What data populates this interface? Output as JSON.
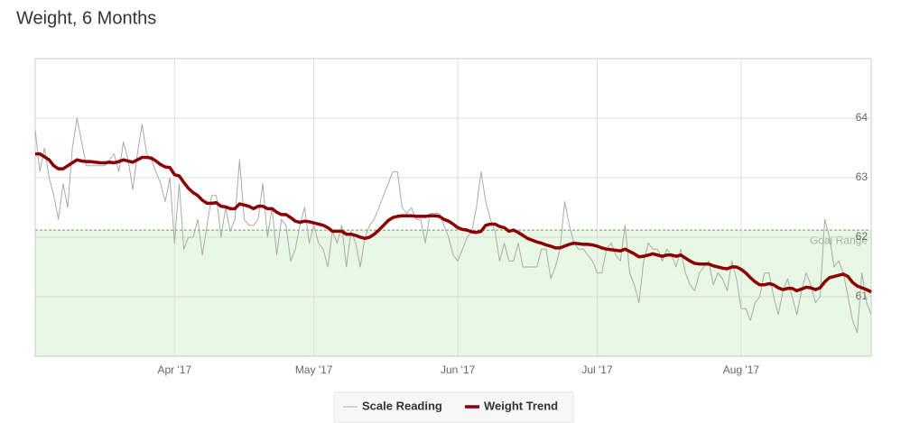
{
  "chart_data": {
    "type": "line",
    "title": "Weight, 6 Months",
    "categories": [
      null,
      null,
      null,
      null,
      null,
      null,
      null,
      null,
      null,
      null,
      null,
      null,
      null,
      null,
      null,
      null,
      null,
      null,
      null,
      null,
      null,
      null,
      null,
      null,
      null,
      null,
      null,
      null,
      null,
      null,
      "Apr '17",
      null,
      null,
      null,
      null,
      null,
      null,
      null,
      null,
      null,
      null,
      null,
      null,
      null,
      null,
      null,
      null,
      null,
      null,
      null,
      null,
      null,
      null,
      null,
      null,
      null,
      null,
      null,
      null,
      null,
      "May '17",
      null,
      null,
      null,
      null,
      null,
      null,
      null,
      null,
      null,
      null,
      null,
      null,
      null,
      null,
      null,
      null,
      null,
      null,
      null,
      null,
      null,
      null,
      null,
      null,
      null,
      null,
      null,
      null,
      null,
      null,
      "Jun '17",
      null,
      null,
      null,
      null,
      null,
      null,
      null,
      null,
      null,
      null,
      null,
      null,
      null,
      null,
      null,
      null,
      null,
      null,
      null,
      null,
      null,
      null,
      null,
      null,
      null,
      null,
      null,
      null,
      null,
      "Jul '17",
      null,
      null,
      null,
      null,
      null,
      null,
      null,
      null,
      null,
      null,
      null,
      null,
      null,
      null,
      null,
      null,
      null,
      null,
      null,
      null,
      null,
      null,
      null,
      null,
      null,
      null,
      null,
      null,
      null,
      null,
      "Aug '17",
      null,
      null,
      null,
      null,
      null,
      null,
      null,
      null,
      null,
      null,
      null,
      null,
      null,
      null,
      null,
      null,
      null,
      null,
      null,
      null,
      null,
      null,
      null,
      null,
      null,
      null,
      null,
      null
    ],
    "series": [
      {
        "name": "Scale Reading",
        "color": "#aaaaaa",
        "values": [
          63.8,
          63.1,
          63.5,
          63.0,
          62.7,
          62.3,
          62.9,
          62.5,
          63.5,
          64.0,
          63.6,
          63.2,
          63.2,
          63.2,
          63.2,
          63.2,
          63.3,
          63.4,
          63.1,
          63.6,
          63.3,
          62.8,
          63.4,
          63.9,
          63.4,
          63.3,
          63.1,
          62.9,
          62.6,
          63.0,
          61.9,
          62.9,
          61.8,
          62.0,
          62.0,
          62.3,
          61.7,
          62.2,
          62.7,
          62.7,
          62.0,
          62.5,
          62.1,
          62.3,
          63.3,
          62.3,
          62.2,
          62.2,
          62.3,
          62.9,
          62.0,
          62.5,
          61.7,
          62.3,
          62.2,
          61.6,
          61.8,
          62.2,
          62.5,
          61.9,
          62.2,
          61.9,
          61.8,
          61.5,
          62.1,
          61.9,
          62.2,
          61.5,
          62.1,
          61.9,
          61.5,
          62.0,
          62.2,
          62.3,
          62.5,
          62.7,
          62.9,
          63.1,
          63.1,
          62.5,
          62.4,
          62.5,
          62.3,
          62.3,
          61.9,
          62.4,
          62.4,
          62.4,
          62.2,
          62.0,
          61.7,
          61.6,
          61.8,
          62.0,
          62.1,
          62.5,
          63.1,
          62.6,
          62.3,
          62.1,
          61.6,
          61.9,
          61.6,
          61.6,
          61.9,
          61.5,
          61.5,
          61.5,
          61.5,
          61.8,
          61.8,
          61.3,
          61.5,
          61.8,
          62.6,
          62.2,
          61.9,
          61.8,
          61.8,
          61.7,
          61.6,
          61.4,
          61.4,
          61.8,
          61.9,
          61.7,
          61.6,
          62.2,
          61.4,
          61.2,
          60.9,
          61.6,
          61.9,
          61.8,
          61.8,
          61.6,
          61.8,
          61.7,
          61.5,
          61.8,
          61.4,
          61.2,
          61.1,
          61.4,
          61.5,
          61.6,
          61.2,
          61.4,
          61.3,
          61.1,
          61.6,
          61.3,
          60.8,
          60.8,
          60.6,
          60.9,
          61.0,
          61.4,
          61.4,
          61.0,
          60.7,
          61.1,
          61.3,
          61.0,
          60.7,
          61.1,
          61.4,
          61.2,
          60.9,
          61.0,
          62.3,
          62.0,
          61.5,
          61.6,
          61.4,
          61.0,
          60.6,
          60.4,
          61.4,
          60.9,
          60.7
        ]
      },
      {
        "name": "Weight Trend",
        "color": "#8b0000",
        "values": [
          63.4,
          63.4,
          63.35,
          63.3,
          63.2,
          63.15,
          63.15,
          63.2,
          63.25,
          63.3,
          63.28,
          63.27,
          63.27,
          63.26,
          63.25,
          63.25,
          63.26,
          63.25,
          63.27,
          63.3,
          63.28,
          63.26,
          63.3,
          63.34,
          63.34,
          63.33,
          63.28,
          63.22,
          63.18,
          63.17,
          63.05,
          63.03,
          62.92,
          62.82,
          62.75,
          62.7,
          62.62,
          62.57,
          62.57,
          62.58,
          62.52,
          62.51,
          62.48,
          62.48,
          62.56,
          62.54,
          62.52,
          62.48,
          62.52,
          62.52,
          62.48,
          62.48,
          62.42,
          62.38,
          62.38,
          62.33,
          62.27,
          62.25,
          62.27,
          62.26,
          62.24,
          62.22,
          62.2,
          62.16,
          62.1,
          62.1,
          62.1,
          62.05,
          62.05,
          62.03,
          62.0,
          61.98,
          62.0,
          62.05,
          62.12,
          62.2,
          62.28,
          62.33,
          62.35,
          62.36,
          62.36,
          62.36,
          62.35,
          62.35,
          62.35,
          62.36,
          62.36,
          62.35,
          62.3,
          62.27,
          62.22,
          62.16,
          62.13,
          62.12,
          62.09,
          62.08,
          62.1,
          62.2,
          62.22,
          62.22,
          62.18,
          62.16,
          62.1,
          62.12,
          62.08,
          62.03,
          61.98,
          61.95,
          61.92,
          61.9,
          61.87,
          61.85,
          61.82,
          61.82,
          61.85,
          61.88,
          61.9,
          61.89,
          61.88,
          61.88,
          61.87,
          61.85,
          61.82,
          61.8,
          61.79,
          61.78,
          61.77,
          61.8,
          61.76,
          61.72,
          61.67,
          61.68,
          61.7,
          61.72,
          61.7,
          61.68,
          61.7,
          61.7,
          61.68,
          61.7,
          61.65,
          61.6,
          61.56,
          61.55,
          61.55,
          61.55,
          61.52,
          61.5,
          61.48,
          61.47,
          61.5,
          61.5,
          61.46,
          61.4,
          61.32,
          61.25,
          61.2,
          61.2,
          61.22,
          61.2,
          61.15,
          61.12,
          61.14,
          61.14,
          61.1,
          61.13,
          61.16,
          61.15,
          61.12,
          61.15,
          61.25,
          61.32,
          61.34,
          61.36,
          61.38,
          61.34,
          61.24,
          61.18,
          61.15,
          61.12,
          61.08
        ]
      }
    ],
    "goal": {
      "label": "Goal Range",
      "value": 62.12,
      "color": "#e8f8e4"
    },
    "ylim": [
      60,
      65
    ],
    "yticks": [
      61,
      62,
      63,
      64
    ],
    "grid": true
  }
}
